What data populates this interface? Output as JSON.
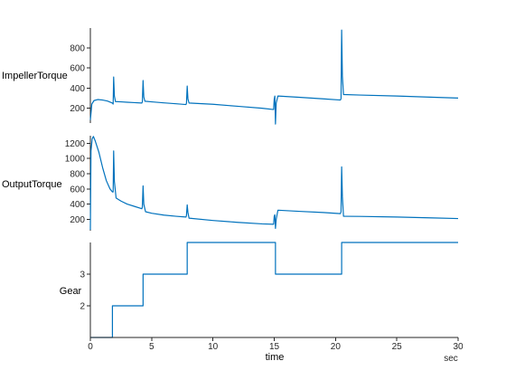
{
  "chart_data": {
    "type": "line",
    "series_color": "#0072BD",
    "x_axis": {
      "label": "time",
      "unit": "sec",
      "range": [
        0,
        30
      ],
      "ticks": [
        0,
        5,
        10,
        15,
        20,
        25,
        30
      ],
      "tick_labels": [
        "0",
        "5",
        "10",
        "15",
        "20",
        "25",
        "30"
      ]
    },
    "panels": [
      {
        "ylabel": "ImpellerTorque",
        "ylim": [
          50,
          1000
        ],
        "yticks": [
          200,
          400,
          600,
          800
        ],
        "ytick_labels": [
          "200",
          "400",
          "600",
          "800"
        ],
        "points": [
          [
            0,
            80
          ],
          [
            0.12,
            240
          ],
          [
            0.3,
            275
          ],
          [
            0.6,
            285
          ],
          [
            1.0,
            280
          ],
          [
            1.4,
            270
          ],
          [
            1.8,
            250
          ],
          [
            1.86,
            240
          ],
          [
            1.9,
            510
          ],
          [
            1.96,
            320
          ],
          [
            2.05,
            265
          ],
          [
            2.5,
            262
          ],
          [
            3.0,
            258
          ],
          [
            3.6,
            254
          ],
          [
            4.2,
            250
          ],
          [
            4.24,
            262
          ],
          [
            4.3,
            475
          ],
          [
            4.36,
            310
          ],
          [
            4.45,
            268
          ],
          [
            5.0,
            262
          ],
          [
            6.0,
            252
          ],
          [
            7.0,
            243
          ],
          [
            7.8,
            235
          ],
          [
            7.84,
            248
          ],
          [
            7.9,
            420
          ],
          [
            7.96,
            290
          ],
          [
            8.05,
            250
          ],
          [
            10.0,
            238
          ],
          [
            12.0,
            218
          ],
          [
            14.0,
            198
          ],
          [
            14.95,
            185
          ],
          [
            15.0,
            290
          ],
          [
            15.05,
            320
          ],
          [
            15.1,
            40
          ],
          [
            15.16,
            250
          ],
          [
            15.3,
            320
          ],
          [
            17.0,
            308
          ],
          [
            19.0,
            292
          ],
          [
            20.4,
            280
          ],
          [
            20.45,
            295
          ],
          [
            20.5,
            980
          ],
          [
            20.56,
            520
          ],
          [
            20.65,
            335
          ],
          [
            22.0,
            330
          ],
          [
            25.0,
            320
          ],
          [
            28.0,
            308
          ],
          [
            30.0,
            300
          ]
        ]
      },
      {
        "ylabel": "OutputTorque",
        "ylim": [
          50,
          1300
        ],
        "yticks": [
          200,
          400,
          600,
          800,
          1000,
          1200
        ],
        "ytick_labels": [
          "200",
          "400",
          "600",
          "800",
          "1000",
          "1200"
        ],
        "points": [
          [
            0,
            60
          ],
          [
            0.05,
            1100
          ],
          [
            0.15,
            1260
          ],
          [
            0.25,
            1290
          ],
          [
            0.4,
            1230
          ],
          [
            0.7,
            1080
          ],
          [
            1.0,
            880
          ],
          [
            1.3,
            710
          ],
          [
            1.6,
            600
          ],
          [
            1.8,
            560
          ],
          [
            1.86,
            560
          ],
          [
            1.9,
            1100
          ],
          [
            1.96,
            700
          ],
          [
            2.1,
            480
          ],
          [
            2.5,
            440
          ],
          [
            3.0,
            400
          ],
          [
            3.6,
            370
          ],
          [
            4.2,
            340
          ],
          [
            4.24,
            360
          ],
          [
            4.3,
            640
          ],
          [
            4.36,
            400
          ],
          [
            4.5,
            300
          ],
          [
            5.0,
            280
          ],
          [
            6.0,
            255
          ],
          [
            7.0,
            240
          ],
          [
            7.8,
            230
          ],
          [
            7.84,
            250
          ],
          [
            7.9,
            390
          ],
          [
            7.96,
            290
          ],
          [
            8.05,
            215
          ],
          [
            10.0,
            185
          ],
          [
            12.0,
            160
          ],
          [
            14.0,
            140
          ],
          [
            14.95,
            135
          ],
          [
            15.0,
            240
          ],
          [
            15.05,
            260
          ],
          [
            15.1,
            80
          ],
          [
            15.16,
            200
          ],
          [
            15.3,
            320
          ],
          [
            17.0,
            305
          ],
          [
            19.0,
            290
          ],
          [
            20.4,
            275
          ],
          [
            20.45,
            300
          ],
          [
            20.5,
            890
          ],
          [
            20.56,
            500
          ],
          [
            20.65,
            240
          ],
          [
            22.0,
            238
          ],
          [
            25.0,
            230
          ],
          [
            28.0,
            218
          ],
          [
            30.0,
            210
          ]
        ]
      },
      {
        "ylabel": "Gear",
        "ylim": [
          1,
          4
        ],
        "yticks": [
          2,
          3
        ],
        "ytick_labels": [
          "2",
          "3"
        ],
        "points": [
          [
            0,
            1
          ],
          [
            1.8,
            1
          ],
          [
            1.8,
            2
          ],
          [
            4.3,
            2
          ],
          [
            4.3,
            3
          ],
          [
            7.9,
            3
          ],
          [
            7.9,
            4
          ],
          [
            15.1,
            4
          ],
          [
            15.1,
            3
          ],
          [
            20.5,
            3
          ],
          [
            20.5,
            4
          ],
          [
            30.0,
            4
          ]
        ]
      }
    ]
  }
}
